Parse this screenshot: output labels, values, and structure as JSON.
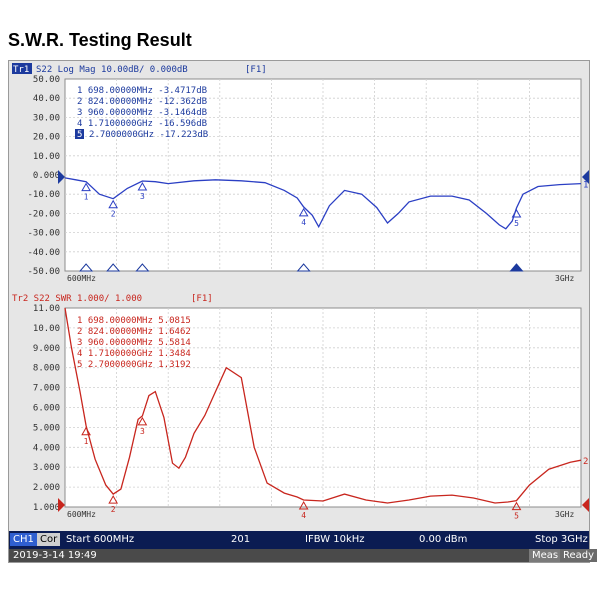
{
  "title": "S.W.R. Testing Result",
  "top_trace": {
    "header_tag": "Tr1",
    "header_rest": "S22 Log Mag 10.00dB/ 0.000dB",
    "format_tag": "[F1]",
    "y_ticks": [
      "50.00",
      "40.00",
      "30.00",
      "20.00",
      "10.00",
      "0.000",
      "-10.00",
      "-20.00",
      "-30.00",
      "-40.00",
      "-50.00"
    ],
    "x_start_label": "600MHz",
    "x_stop_label": "3GHz",
    "end_marker_label": "1",
    "markers": [
      {
        "text": "1  698.00000MHz -3.4717dB",
        "num": "1"
      },
      {
        "text": "2  824.00000MHz -12.362dB",
        "num": "2"
      },
      {
        "text": "3  960.00000MHz -3.1464dB",
        "num": "3"
      },
      {
        "text": "4  1.7100000GHz -16.596dB",
        "num": "4"
      },
      {
        "text": "2.7000000GHz -17.223dB",
        "num": "5"
      }
    ],
    "color": "#2b3fc4"
  },
  "bottom_trace": {
    "header": "Tr2  S22  SWR 1.000/ 1.000",
    "format_tag": "[F1]",
    "y_ticks": [
      "11.00",
      "10.00",
      "9.000",
      "8.000",
      "7.000",
      "6.000",
      "5.000",
      "4.000",
      "3.000",
      "2.000",
      "1.000"
    ],
    "x_start_label": "600MHz",
    "x_stop_label": "3GHz",
    "end_marker_label": "2",
    "markers": [
      {
        "text": "1  698.00000MHz 5.0815",
        "num": "1"
      },
      {
        "text": "2  824.00000MHz 1.6462",
        "num": "2"
      },
      {
        "text": "3  960.00000MHz 5.5814",
        "num": "3"
      },
      {
        "text": "4  1.7100000GHz 1.3484",
        "num": "4"
      },
      {
        "text": "5  2.7000000GHz 1.3192",
        "num": "5"
      }
    ],
    "color": "#c8261e"
  },
  "status_bar": {
    "channel": "CH1",
    "cor": "Cor",
    "start": "Start 600MHz",
    "points": "201",
    "ifbw": "IFBW 10kHz",
    "power": "0.00 dBm",
    "stop": "Stop 3GHz"
  },
  "info_bar": {
    "timestamp": "2019-3-14 19:49",
    "meas": "Meas",
    "ready": "Ready"
  },
  "chart_data": [
    {
      "type": "line",
      "title": "S22 Log Mag 10.00dB/ 0.000dB",
      "xlabel": "",
      "ylabel": "",
      "x_range": [
        600,
        3000
      ],
      "x_unit": "MHz",
      "ylim": [
        -50,
        50
      ],
      "grid": true,
      "series": [
        {
          "x": [
            600,
            650,
            698,
            760,
            824,
            890,
            960,
            1020,
            1080,
            1200,
            1300,
            1420,
            1530,
            1620,
            1680,
            1710,
            1750,
            1780,
            1830,
            1900,
            1980,
            2050,
            2100,
            2150,
            2200,
            2300,
            2400,
            2480,
            2560,
            2620,
            2650,
            2680,
            2700,
            2730,
            2800,
            2900,
            3000
          ],
          "y": [
            -1.5,
            -2.5,
            -3.47,
            -10,
            -12.36,
            -7,
            -3.15,
            -3.5,
            -4.5,
            -3,
            -2.5,
            -3,
            -4,
            -8,
            -12,
            -16.6,
            -21,
            -27,
            -16,
            -8,
            -10,
            -17,
            -25,
            -20,
            -14,
            -11,
            -11,
            -13,
            -20,
            -26,
            -28,
            -24,
            -17.2,
            -10,
            -6,
            -5,
            -4.5
          ]
        }
      ]
    },
    {
      "type": "line",
      "title": "S22 SWR 1.000/ 1.000",
      "xlabel": "",
      "ylabel": "",
      "x_range": [
        600,
        3000
      ],
      "x_unit": "MHz",
      "ylim": [
        1,
        11
      ],
      "grid": true,
      "series": [
        {
          "x": [
            600,
            630,
            670,
            698,
            740,
            790,
            824,
            860,
            900,
            940,
            960,
            990,
            1020,
            1060,
            1100,
            1130,
            1160,
            1200,
            1250,
            1300,
            1350,
            1420,
            1480,
            1540,
            1620,
            1680,
            1710,
            1800,
            1900,
            2000,
            2100,
            2200,
            2300,
            2400,
            2500,
            2600,
            2660,
            2700,
            2760,
            2850,
            2950,
            3000
          ],
          "y": [
            11,
            9,
            6.8,
            5.08,
            3.4,
            2.1,
            1.65,
            1.9,
            3.5,
            5.4,
            5.58,
            6.6,
            6.8,
            5.5,
            3.2,
            2.95,
            3.5,
            4.7,
            5.6,
            6.8,
            8,
            7.5,
            4,
            2.2,
            1.7,
            1.5,
            1.35,
            1.3,
            1.65,
            1.35,
            1.2,
            1.35,
            1.55,
            1.6,
            1.45,
            1.2,
            1.25,
            1.32,
            2.1,
            2.9,
            3.25,
            3.35
          ]
        }
      ]
    }
  ]
}
